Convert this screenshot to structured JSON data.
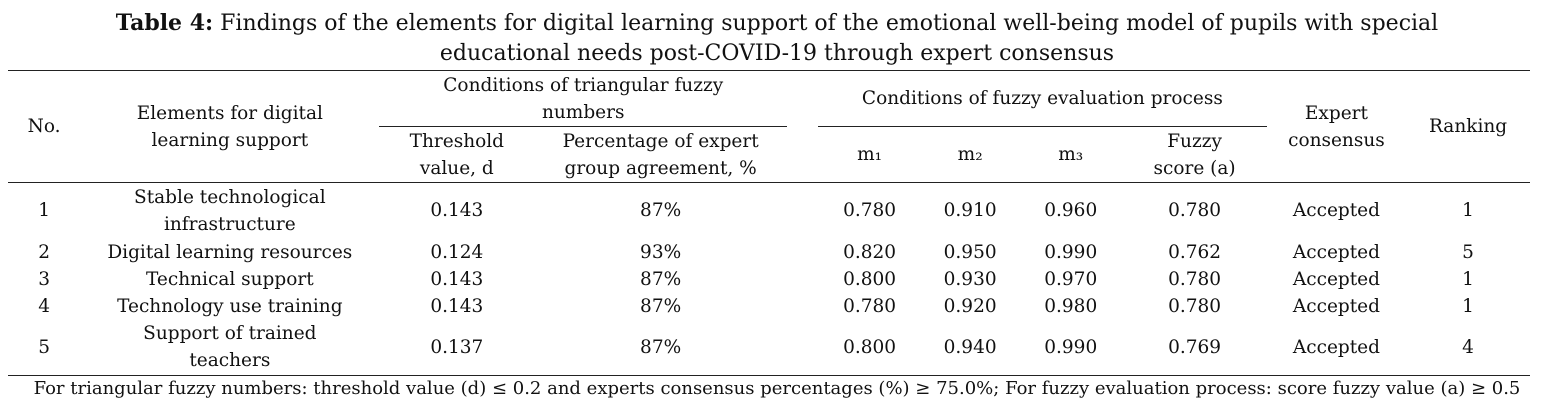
{
  "caption": {
    "label": "Table 4:",
    "line1": "Findings of the elements for digital learning support of the emotional well-being model of pupils with special",
    "line2": "educational needs post-COVID-19 through expert consensus"
  },
  "headers": {
    "no": "No.",
    "elements": [
      "Elements for digital",
      "learning support"
    ],
    "group_tfn": [
      "Conditions of triangular fuzzy",
      "numbers"
    ],
    "threshold": [
      "Threshold",
      "value, d"
    ],
    "percentage": [
      "Percentage of expert",
      "group agreement, %"
    ],
    "group_fep": "Conditions of fuzzy evaluation process",
    "m1": "m₁",
    "m2": "m₂",
    "m3": "m₃",
    "fuzzy": [
      "Fuzzy",
      "score (a)"
    ],
    "consensus": [
      "Expert",
      "consensus"
    ],
    "ranking": "Ranking"
  },
  "rows": [
    {
      "no": "1",
      "element": [
        "Stable technological",
        "infrastructure"
      ],
      "d": "0.143",
      "pct": "87%",
      "m1": "0.780",
      "m2": "0.910",
      "m3": "0.960",
      "a": "0.780",
      "consensus": "Accepted",
      "rank": "1"
    },
    {
      "no": "2",
      "element": [
        "Digital learning resources"
      ],
      "d": "0.124",
      "pct": "93%",
      "m1": "0.820",
      "m2": "0.950",
      "m3": "0.990",
      "a": "0.762",
      "consensus": "Accepted",
      "rank": "5"
    },
    {
      "no": "3",
      "element": [
        "Technical support"
      ],
      "d": "0.143",
      "pct": "87%",
      "m1": "0.800",
      "m2": "0.930",
      "m3": "0.970",
      "a": "0.780",
      "consensus": "Accepted",
      "rank": "1"
    },
    {
      "no": "4",
      "element": [
        "Technology use training"
      ],
      "d": "0.143",
      "pct": "87%",
      "m1": "0.780",
      "m2": "0.920",
      "m3": "0.980",
      "a": "0.780",
      "consensus": "Accepted",
      "rank": "1"
    },
    {
      "no": "5",
      "element": [
        "Support of trained",
        "teachers"
      ],
      "d": "0.137",
      "pct": "87%",
      "m1": "0.800",
      "m2": "0.940",
      "m3": "0.990",
      "a": "0.769",
      "consensus": "Accepted",
      "rank": "4"
    }
  ],
  "footnote": "For triangular fuzzy numbers: threshold value (d) ≤ 0.2 and experts consensus percentages (%) ≥ 75.0%; For fuzzy evaluation process: score fuzzy value (a) ≥ 0.5"
}
